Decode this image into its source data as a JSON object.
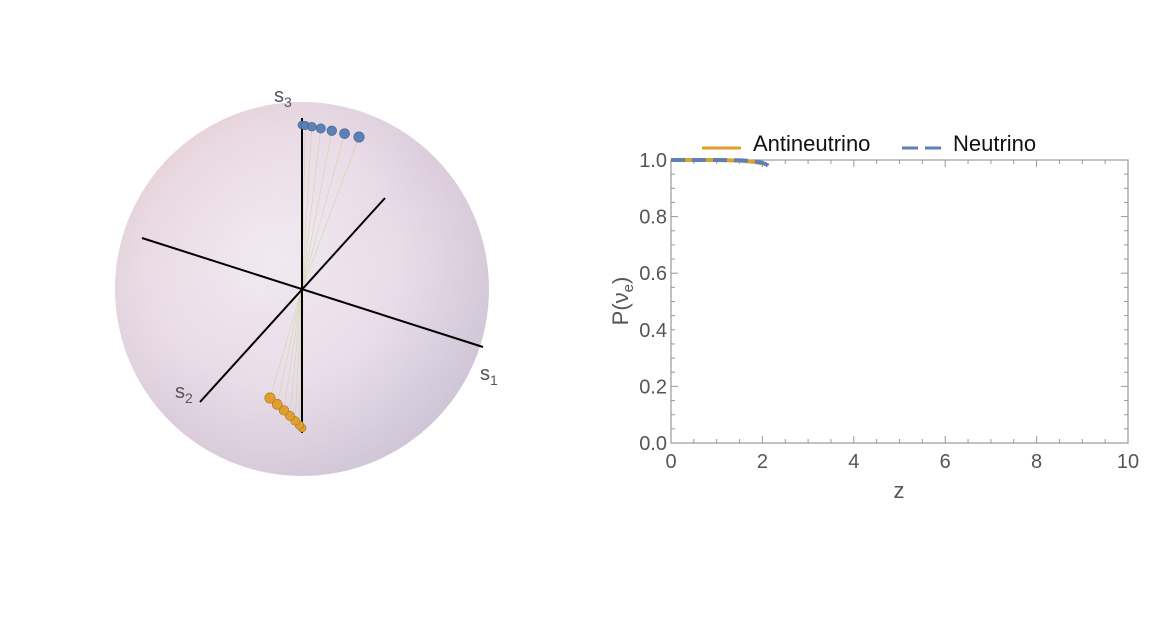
{
  "colors": {
    "antineutrino": "#E09F2E",
    "neutrino": "#5C81B5",
    "axis_text": "#555555",
    "sphere_line": "#000000"
  },
  "sphere": {
    "axis_labels": {
      "s1": "s",
      "s1_sub": "1",
      "s2": "s",
      "s2_sub": "2",
      "s3": "s",
      "s3_sub": "3"
    },
    "neutrino_points": 7,
    "antineutrino_points": 7
  },
  "chart_data": {
    "type": "line",
    "title": "",
    "xlabel": "z",
    "ylabel": {
      "main": "P(ν",
      "sub": "e",
      "close": ")"
    },
    "xlim": [
      0,
      10
    ],
    "ylim": [
      0,
      1
    ],
    "xticks": [
      "0",
      "2",
      "4",
      "6",
      "8",
      "10"
    ],
    "yticks": [
      "0.0",
      "0.2",
      "0.4",
      "0.6",
      "0.8",
      "1.0"
    ],
    "legend": {
      "placement": "top",
      "entries": [
        "Antineutrino",
        "Neutrino"
      ]
    },
    "series": [
      {
        "name": "Antineutrino",
        "style": "solid",
        "x": [
          0,
          0.5,
          1.0,
          1.5,
          1.8,
          2.0
        ],
        "y": [
          1.0,
          1.0,
          1.0,
          0.998,
          0.994,
          0.988
        ]
      },
      {
        "name": "Neutrino",
        "style": "dashed",
        "x": [
          0,
          0.5,
          1.0,
          1.5,
          1.8,
          2.0,
          2.1,
          2.15
        ],
        "y": [
          1.0,
          1.0,
          1.0,
          0.999,
          0.996,
          0.99,
          0.983,
          0.975
        ]
      }
    ]
  }
}
